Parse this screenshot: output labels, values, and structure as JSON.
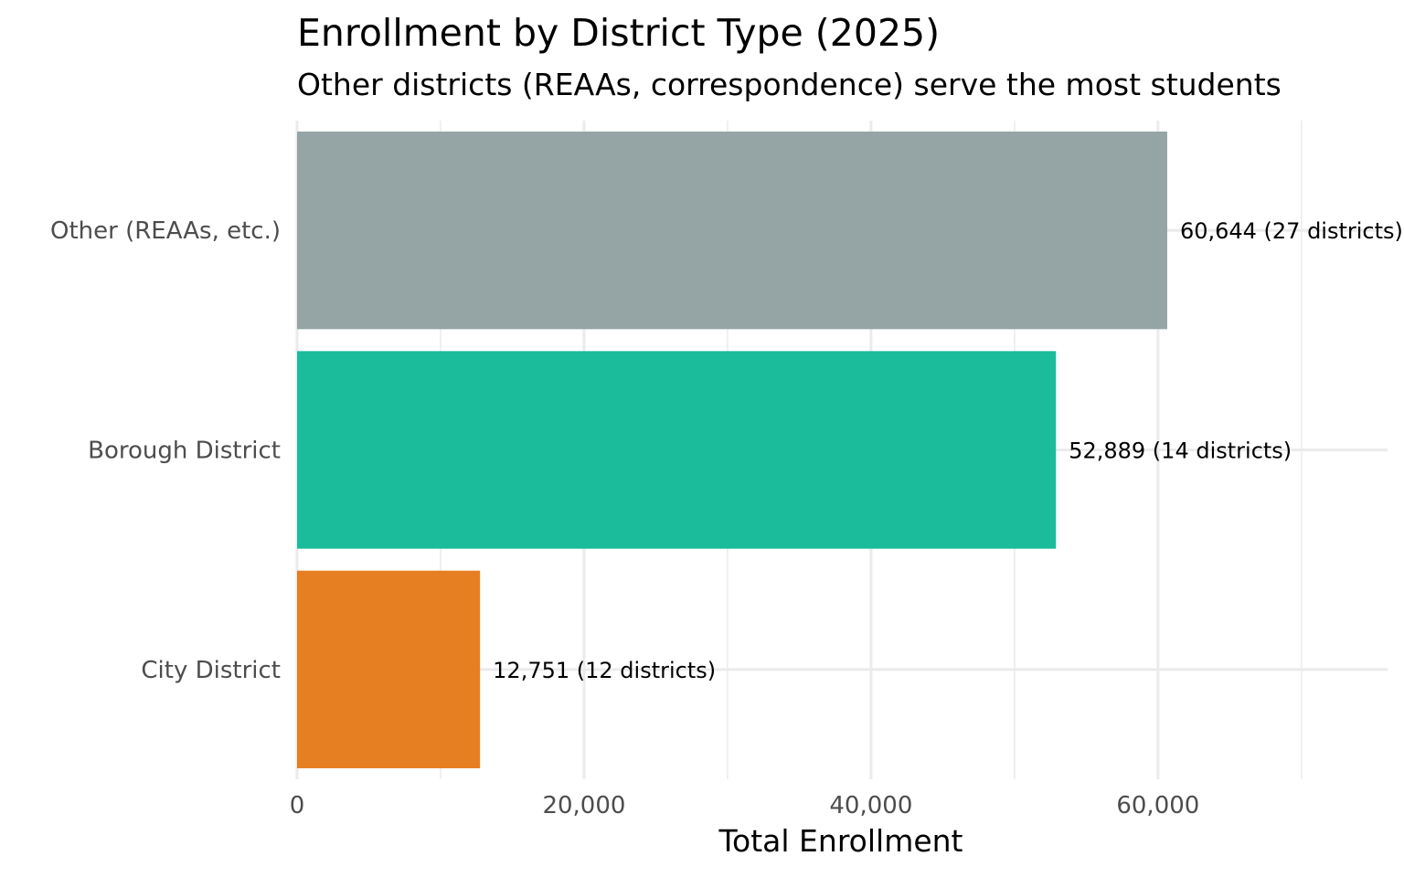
{
  "chart_data": {
    "type": "bar",
    "orientation": "horizontal",
    "title": "Enrollment by District Type (2025)",
    "subtitle": "Other districts (REAAs, correspondence) serve the most students",
    "xlabel": "Total Enrollment",
    "ylabel": "",
    "categories": [
      "Other (REAAs, etc.)",
      "Borough District",
      "City District"
    ],
    "values": [
      60644,
      52889,
      12751
    ],
    "district_counts": [
      27,
      14,
      12
    ],
    "data_labels": [
      "60,644 (27 districts)",
      "52,889 (14 districts)",
      "12,751 (12 districts)"
    ],
    "colors": [
      "#95a5a6",
      "#1abc9c",
      "#e67e22"
    ],
    "xlim": [
      0,
      76000
    ],
    "x_ticks": [
      0,
      20000,
      40000,
      60000
    ],
    "x_tick_labels": [
      "0",
      "20,000",
      "40,000",
      "60,000"
    ],
    "x_minor_ticks": [
      10000,
      30000,
      50000,
      70000
    ],
    "grid": true,
    "legend": "none"
  }
}
